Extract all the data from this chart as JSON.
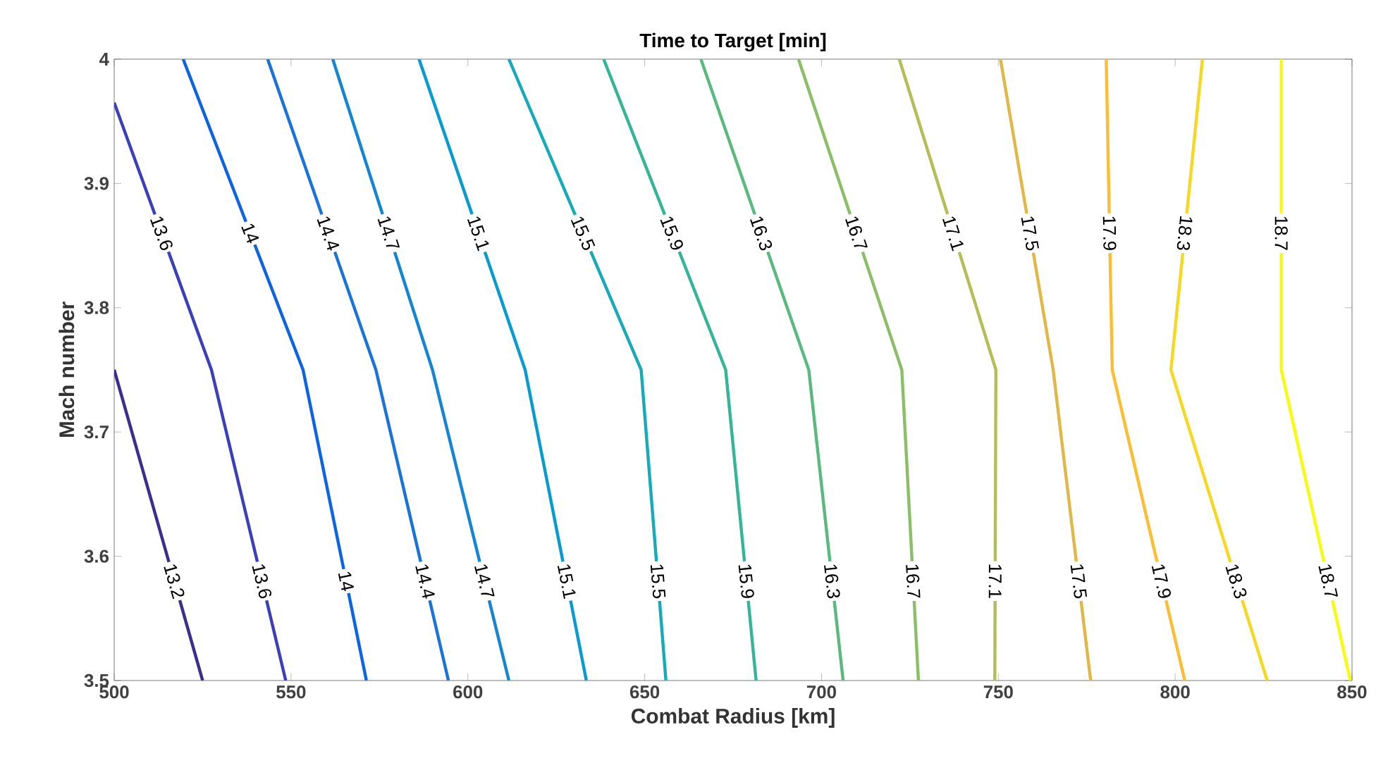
{
  "chart_data": {
    "type": "line",
    "title": "Time to Target [min]",
    "xlabel": "Combat Radius [km]",
    "ylabel": "Mach number",
    "xlim": [
      500,
      850
    ],
    "ylim": [
      3.5,
      4
    ],
    "xticks": [
      500,
      550,
      600,
      650,
      700,
      750,
      800,
      850
    ],
    "yticks": [
      3.5,
      3.6,
      3.7,
      3.8,
      3.9,
      4
    ],
    "series": [
      {
        "name": "13.2",
        "color": "#3b2e8c",
        "x": [
          500,
          525
        ],
        "values": [
          3.75,
          3.5
        ]
      },
      {
        "name": "13.6",
        "color": "#3b3fb8",
        "x": [
          500,
          527.5,
          548.5
        ],
        "values": [
          3.965,
          3.75,
          3.5
        ]
      },
      {
        "name": "14",
        "color": "#0d64e0",
        "x": [
          519.5,
          553.4,
          571.3
        ],
        "values": [
          4,
          3.75,
          3.5
        ]
      },
      {
        "name": "14.4",
        "color": "#1a73d6",
        "x": [
          543.4,
          574,
          594.5
        ],
        "values": [
          4,
          3.75,
          3.5
        ]
      },
      {
        "name": "14.7",
        "color": "#1585d2",
        "x": [
          561.8,
          590,
          611.6
        ],
        "values": [
          4,
          3.75,
          3.5
        ]
      },
      {
        "name": "15.1",
        "color": "#089bce",
        "x": [
          586.2,
          616.2,
          633.5
        ],
        "values": [
          4,
          3.75,
          3.5
        ]
      },
      {
        "name": "15.5",
        "color": "#17aab8",
        "x": [
          611.6,
          649,
          656
        ],
        "values": [
          4,
          3.75,
          3.5
        ]
      },
      {
        "name": "15.9",
        "color": "#35b597",
        "x": [
          638.4,
          672.9,
          681.5
        ],
        "values": [
          4,
          3.75,
          3.5
        ]
      },
      {
        "name": "16.3",
        "color": "#5ab97f",
        "x": [
          665.9,
          696.4,
          706.1
        ],
        "values": [
          4,
          3.75,
          3.5
        ]
      },
      {
        "name": "16.7",
        "color": "#8abe67",
        "x": [
          693.5,
          722.7,
          727.4
        ],
        "values": [
          4,
          3.75,
          3.5
        ]
      },
      {
        "name": "17.1",
        "color": "#b4bd56",
        "x": [
          722,
          749.3,
          749
        ],
        "values": [
          4,
          3.75,
          3.5
        ]
      },
      {
        "name": "17.5",
        "color": "#e0b847",
        "x": [
          750.6,
          765.5,
          776.1
        ],
        "values": [
          4,
          3.75,
          3.5
        ]
      },
      {
        "name": "17.9",
        "color": "#fbbd33",
        "x": [
          780.5,
          782.2,
          802.7
        ],
        "values": [
          4,
          3.75,
          3.5
        ]
      },
      {
        "name": "18.3",
        "color": "#f5d821",
        "x": [
          807.7,
          798.8,
          826
        ],
        "values": [
          4,
          3.75,
          3.5
        ]
      },
      {
        "name": "18.7",
        "color": "#f9fb0e",
        "x": [
          830,
          830,
          849.5
        ],
        "values": [
          4,
          3.75,
          3.5
        ]
      }
    ]
  }
}
